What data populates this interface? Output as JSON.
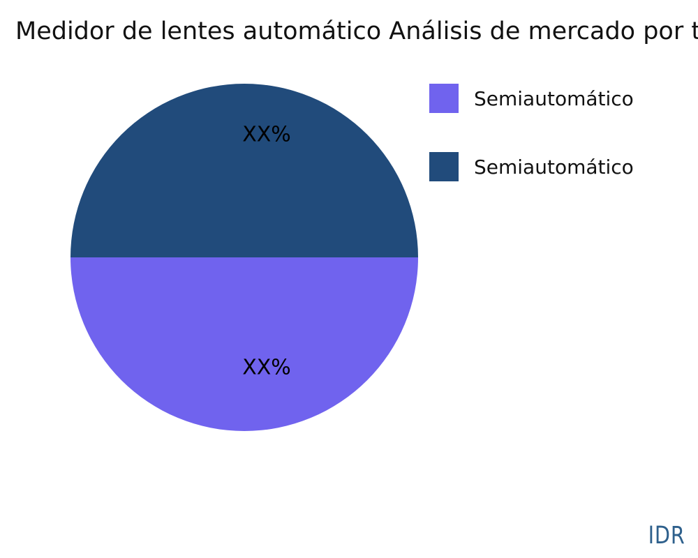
{
  "title": "Medidor de lentes automático Análisis de mercado por t",
  "chart_data": {
    "type": "pie",
    "title": "Medidor de lentes automático Análisis de mercado por t",
    "slices": [
      {
        "label": "Semiautomático",
        "value": 50,
        "display_label": "XX%",
        "color": "#214B7B",
        "position": "top"
      },
      {
        "label": "Semiautomático",
        "value": 50,
        "display_label": "XX%",
        "color": "#7063EE",
        "position": "bottom"
      }
    ],
    "legend_position": "top-right",
    "legend": [
      {
        "label": "Semiautomático",
        "color": "#7063EE"
      },
      {
        "label": "Semiautomático",
        "color": "#214B7B"
      }
    ]
  },
  "legend": {
    "items": [
      {
        "label": "Semiautomático",
        "color": "#7063EE"
      },
      {
        "label": "Semiautomático",
        "color": "#214B7B"
      }
    ]
  },
  "watermark": "IDR",
  "colors": {
    "slice_top": "#214B7B",
    "slice_bottom": "#7063EE",
    "watermark_text": "#2E608C",
    "background": "#FFFFFF",
    "text": "#111111"
  }
}
